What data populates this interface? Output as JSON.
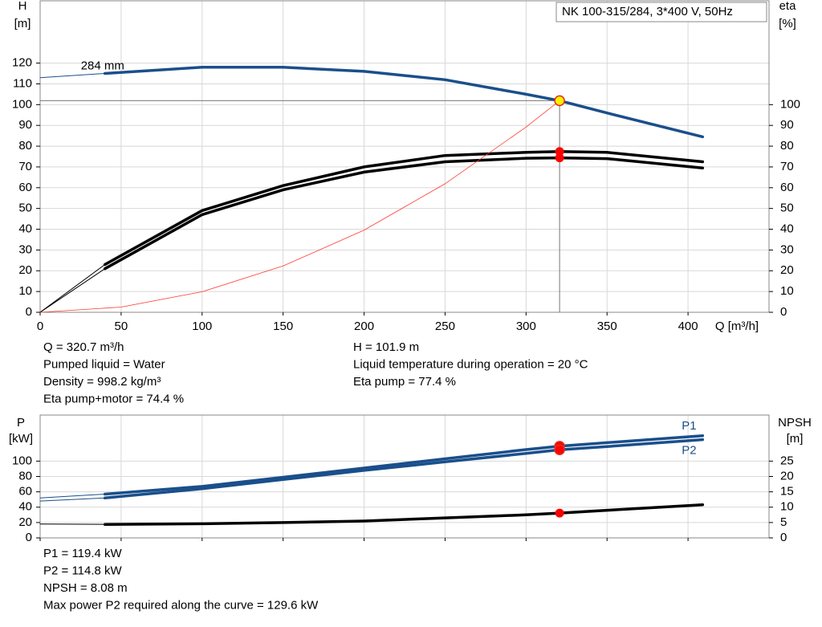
{
  "chart_data": [
    {
      "type": "line",
      "title": "NK 100-315/284, 3*400 V, 50Hz",
      "xlabel": "Q [m³/h]",
      "ylabel": "H",
      "yunit": "[m]",
      "y2label": "eta",
      "y2unit": "[%]",
      "xlim": [
        0,
        450
      ],
      "xticks": [
        0,
        50,
        100,
        150,
        200,
        250,
        300,
        350,
        400
      ],
      "ylim": [
        0,
        150
      ],
      "yticks": [
        0,
        10,
        20,
        30,
        40,
        50,
        60,
        70,
        80,
        90,
        100,
        110,
        120
      ],
      "y2lim": [
        0,
        150
      ],
      "y2ticks": [
        0,
        10,
        20,
        30,
        40,
        50,
        60,
        70,
        80,
        90,
        100
      ],
      "grid": true,
      "crosshair": true,
      "series": [
        {
          "label": "284 mm",
          "color": "#1a4f8b",
          "x": [
            0,
            40,
            100,
            150,
            200,
            250,
            300,
            320.7,
            350,
            409
          ],
          "values": [
            113,
            115,
            118,
            118,
            116,
            112,
            105,
            101.9,
            96,
            84.5
          ]
        },
        {
          "color": "#000000",
          "axis": "y2",
          "x": [
            0,
            40,
            100,
            150,
            200,
            250,
            300,
            320.7,
            350,
            409
          ],
          "values": [
            0,
            23,
            49,
            61,
            70,
            75.5,
            77,
            77.4,
            77,
            72.5
          ]
        },
        {
          "color": "#000000",
          "axis": "y2",
          "x": [
            0,
            40,
            100,
            150,
            200,
            250,
            300,
            320.7,
            350,
            409
          ],
          "values": [
            0,
            21,
            47,
            59,
            67.5,
            72.5,
            74.2,
            74.4,
            74,
            69.5
          ]
        }
      ],
      "system_curve": {
        "color": "#ff3b30",
        "x": [
          0,
          50,
          100,
          150,
          200,
          250,
          300,
          320.7
        ],
        "values": [
          0,
          2.5,
          9.9,
          22.3,
          39.6,
          61.9,
          89.2,
          101.9
        ]
      },
      "operating_point": {
        "x": 320.7,
        "y": [
          101.9
        ],
        "y2": [
          77.4,
          74.4
        ],
        "color": "#ffee00",
        "y2_color": "#ff0000"
      }
    },
    {
      "type": "line",
      "ylabel": "P",
      "yunit": "[kW]",
      "y2label": "NPSH",
      "y2unit": "[m]",
      "xlim": [
        0,
        450
      ],
      "xticks": [
        0,
        50,
        100,
        150,
        200,
        250,
        300,
        350,
        400
      ],
      "ylim": [
        0,
        160
      ],
      "yticks": [
        0,
        20,
        40,
        60,
        80,
        100
      ],
      "y2lim": [
        0,
        40
      ],
      "y2ticks": [
        0,
        5,
        10,
        15,
        20,
        25
      ],
      "grid": true,
      "series": [
        {
          "name": "P1",
          "color": "#1a4f8b",
          "x": [
            0,
            40,
            100,
            150,
            200,
            250,
            300,
            320.7,
            350,
            409
          ],
          "values": [
            52,
            57,
            67,
            79,
            91,
            103,
            115,
            119.4,
            124,
            133
          ]
        },
        {
          "name": "P2",
          "color": "#1a4f8b",
          "x": [
            0,
            40,
            100,
            150,
            200,
            250,
            300,
            320.7,
            350,
            409
          ],
          "values": [
            48,
            52,
            64,
            76,
            88,
            99,
            110,
            114.8,
            119,
            128
          ]
        },
        {
          "color": "#000000",
          "axis": "y2",
          "x": [
            0,
            40,
            100,
            150,
            200,
            250,
            300,
            320.7,
            350,
            409
          ],
          "values": [
            4.5,
            4.4,
            4.6,
            5,
            5.5,
            6.5,
            7.5,
            8.08,
            9,
            10.8
          ]
        }
      ],
      "operating_point": {
        "x": 320.7,
        "y": [
          119.4,
          114.8
        ],
        "y2": [
          8.08
        ],
        "color": "#ff0000",
        "y2_color": "#ff0000"
      }
    }
  ],
  "info": {
    "left": [
      "Q = 320.7 m³/h",
      "Pumped liquid = Water",
      "Density = 998.2 kg/m³",
      "Eta pump+motor = 74.4 %"
    ],
    "right": [
      "H = 101.9 m",
      "Liquid temperature during operation = 20 °C",
      "Eta pump = 77.4 %"
    ],
    "bottom": [
      "P1 = 119.4 kW",
      "P2 = 114.8 kW",
      "NPSH = 8.08 m",
      "Max power P2 required along the curve = 129.6 kW"
    ]
  }
}
